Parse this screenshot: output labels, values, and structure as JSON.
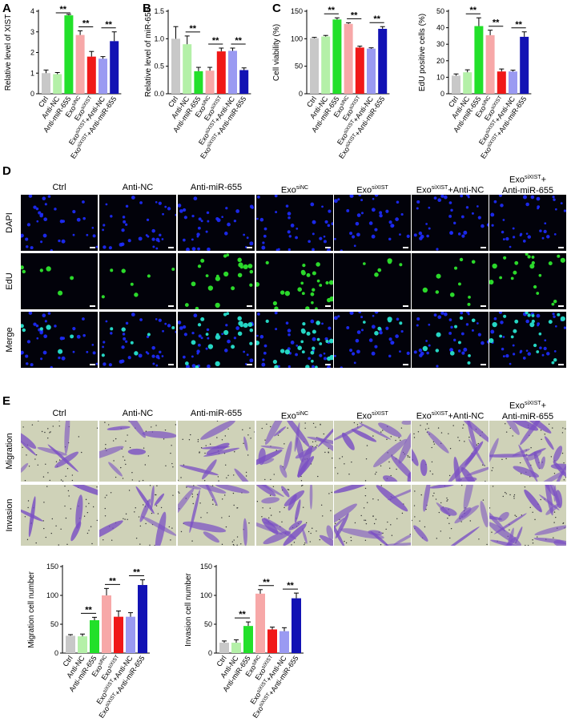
{
  "colors": {
    "ctrl": "#c8c8c8",
    "anti_nc": "#b4f0a8",
    "anti_mir": "#22e02a",
    "exo_sinc": "#f7a8a8",
    "exo_sixist": "#f01818",
    "exo_sixist_antinc": "#9a9af2",
    "exo_sixist_antimir": "#1212b4",
    "nuclei": "#1e2cff",
    "edu": "#2bd92b",
    "merge_edu": "#25d6c4",
    "stain": "#7a4fc4",
    "stain_bg": "#cfd2b8"
  },
  "panel_letters": {
    "A": "A",
    "B": "B",
    "C": "C",
    "D": "D",
    "E": "E"
  },
  "groups": [
    "Ctrl",
    "Anti-NC",
    "Anti-miR-655",
    "Exo^siNC",
    "Exo^siXIST",
    "Exo^siXIST+Anti-NC",
    "Exo^siXIST+Anti-miR-655"
  ],
  "sig_label": "**",
  "panel_d": {
    "rows": [
      "DAPI",
      "EdU",
      "Merge"
    ],
    "columns": [
      "Ctrl",
      "Anti-NC",
      "Anti-miR-655",
      "Exo^siNC",
      "Exo^siXIST",
      "Exo^siXIST+Anti-NC",
      "Exo^siXIST+ Anti-miR-655"
    ]
  },
  "panel_e": {
    "rows": [
      "Migration",
      "Invasion"
    ],
    "columns": [
      "Ctrl",
      "Anti-NC",
      "Anti-miR-655",
      "Exo^siNC",
      "Exo^siXIST",
      "Exo^siXIST+Anti-NC",
      "Exo^siXIST+ Anti-miR-655"
    ]
  },
  "chart_data": [
    {
      "id": "A",
      "type": "bar",
      "ylabel": "Relative level of XIST",
      "ylim": [
        0,
        4
      ],
      "yticks": [
        0,
        1,
        2,
        3,
        4
      ],
      "values": [
        1.0,
        0.95,
        3.8,
        2.85,
        1.8,
        1.7,
        2.55
      ],
      "errors": [
        0.15,
        0.08,
        0.05,
        0.2,
        0.25,
        0.1,
        0.45
      ],
      "significance": [
        [
          1,
          2
        ],
        [
          3,
          4
        ],
        [
          5,
          6
        ]
      ]
    },
    {
      "id": "B",
      "type": "bar",
      "ylabel": "Relative level of miR-655",
      "ylim": [
        0,
        1.5
      ],
      "yticks": [
        0.0,
        0.5,
        1.0,
        1.5
      ],
      "values": [
        1.0,
        0.9,
        0.41,
        0.42,
        0.77,
        0.78,
        0.43
      ],
      "errors": [
        0.22,
        0.15,
        0.07,
        0.06,
        0.06,
        0.05,
        0.04
      ],
      "significance": [
        [
          1,
          2
        ],
        [
          3,
          4
        ],
        [
          5,
          6
        ]
      ]
    },
    {
      "id": "C1",
      "type": "bar",
      "ylabel": "Cell viability (%)",
      "ylim": [
        0,
        150
      ],
      "yticks": [
        0,
        50,
        100,
        150
      ],
      "values": [
        101,
        104,
        135,
        127,
        84,
        82,
        118
      ],
      "errors": [
        1.5,
        2,
        3,
        2,
        2.5,
        1.5,
        4
      ],
      "significance": [
        [
          1,
          2
        ],
        [
          3,
          4
        ],
        [
          5,
          6
        ]
      ]
    },
    {
      "id": "C2",
      "type": "bar",
      "ylabel": "EdU positive cells (%)",
      "ylim": [
        0,
        50
      ],
      "yticks": [
        0,
        10,
        20,
        30,
        40,
        50
      ],
      "values": [
        11,
        13,
        41,
        35.5,
        13.5,
        13.5,
        34.5
      ],
      "errors": [
        1,
        1.5,
        5,
        3,
        1.5,
        0.8,
        3
      ],
      "significance": [
        [
          1,
          2
        ],
        [
          3,
          4
        ],
        [
          5,
          6
        ]
      ]
    },
    {
      "id": "E1",
      "type": "bar",
      "ylabel": "Migration cell number",
      "ylim": [
        0,
        150
      ],
      "yticks": [
        0,
        50,
        100,
        150
      ],
      "values": [
        30,
        29,
        57,
        100,
        63,
        63,
        118
      ],
      "errors": [
        2,
        4,
        5,
        12,
        10,
        7,
        9
      ],
      "significance": [
        [
          1,
          2
        ],
        [
          3,
          4
        ],
        [
          5,
          6
        ]
      ]
    },
    {
      "id": "E2",
      "type": "bar",
      "ylabel": "Invasion cell number",
      "ylim": [
        0,
        150
      ],
      "yticks": [
        0,
        50,
        100,
        150
      ],
      "values": [
        18,
        18,
        47,
        103,
        41,
        38,
        95
      ],
      "errors": [
        3,
        5,
        7,
        7,
        4,
        6,
        9
      ],
      "significance": [
        [
          1,
          2
        ],
        [
          3,
          4
        ],
        [
          5,
          6
        ]
      ]
    }
  ]
}
